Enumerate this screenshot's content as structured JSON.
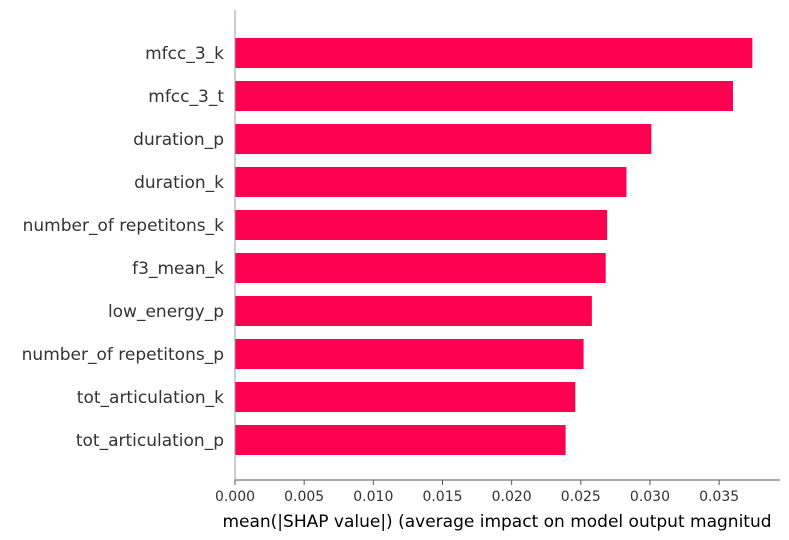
{
  "chart_data": {
    "type": "bar",
    "orientation": "horizontal",
    "categories": [
      "mfcc_3_k",
      "mfcc_3_t",
      "duration_p",
      "duration_k",
      "number_of repetitons_k",
      "f3_mean_k",
      "low_energy_p",
      "number_of repetitons_p",
      "tot_articulation_k",
      "tot_articulation_p"
    ],
    "values": [
      0.0374,
      0.036,
      0.0301,
      0.0283,
      0.0269,
      0.0268,
      0.0258,
      0.0252,
      0.0246,
      0.0239
    ],
    "title": "",
    "xlabel": "mean(|SHAP value|) (average impact on model output magnitud",
    "ylabel": "",
    "xlim": [
      0.0,
      0.0394
    ],
    "xticks": [
      "0.000",
      "0.005",
      "0.010",
      "0.015",
      "0.020",
      "0.025",
      "0.030",
      "0.035"
    ],
    "bar_color": "#ff0051",
    "grid": false,
    "legend": "none"
  }
}
